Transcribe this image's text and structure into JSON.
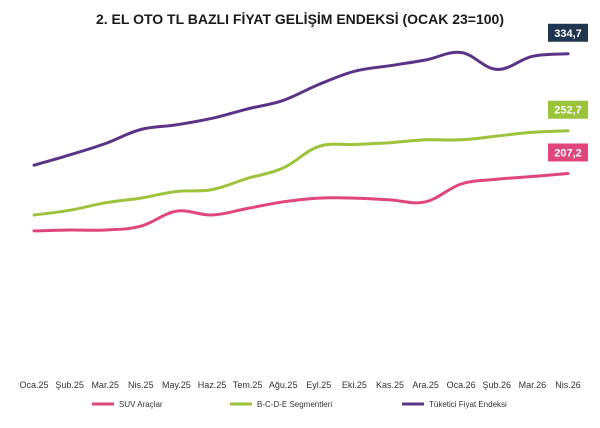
{
  "chart_data": {
    "type": "line",
    "title": "2. EL OTO TL BAZLI FİYAT GELİŞİM ENDEKSİ (OCAK 23=100)",
    "categories": [
      "Oca.25",
      "Şub.25",
      "Mar.25",
      "Nis.25",
      "May.25",
      "Haz.25",
      "Tem.25",
      "Ağu.25",
      "Eyl.25",
      "Eki.25",
      "Kas.25",
      "Ara.25",
      "Oca.26",
      "Şub.26",
      "Mar.26",
      "Nis.26"
    ],
    "ylim": [
      0,
      360
    ],
    "grid": false,
    "legend_position": "bottom",
    "series": [
      {
        "name": "SUV Araçlar",
        "color": "#e0457b",
        "values": [
          146,
          147,
          147,
          151,
          167,
          163,
          170,
          177,
          181,
          181,
          179,
          177,
          196,
          201,
          204,
          207.2
        ],
        "end_label": "207,2"
      },
      {
        "name": "B-C-D-E Segmentleri",
        "color": "#9bc33b",
        "values": [
          163,
          168,
          176,
          181,
          188,
          190,
          202,
          213,
          236,
          238,
          240,
          243,
          243,
          247,
          251,
          252.7
        ],
        "end_label": "252,7"
      },
      {
        "name": "Tüketici Fiyat Endeksi",
        "color": "#5b3386",
        "values": [
          216,
          227,
          239,
          254,
          259,
          266,
          276,
          285,
          302,
          316,
          322,
          328,
          336,
          318,
          332,
          334.7
        ],
        "end_label": "334,7"
      }
    ]
  }
}
